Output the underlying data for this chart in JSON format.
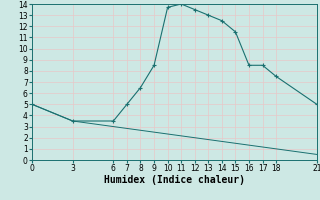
{
  "xlabel": "Humidex (Indice chaleur)",
  "bg_color": "#cde8e4",
  "grid_color": "#e8c8c8",
  "line_color": "#1a7070",
  "upper_x": [
    0,
    3,
    6,
    7,
    8,
    9,
    10,
    11,
    12,
    13,
    14,
    15,
    16,
    17,
    18,
    21
  ],
  "upper_y": [
    5.0,
    3.5,
    3.5,
    5.0,
    6.5,
    8.5,
    13.7,
    14.0,
    13.5,
    13.0,
    12.5,
    11.5,
    8.5,
    8.5,
    7.5,
    5.0
  ],
  "lower_x": [
    0,
    3,
    6,
    9,
    12,
    15,
    18,
    21
  ],
  "lower_y": [
    5.0,
    3.5,
    3.0,
    2.5,
    2.0,
    1.5,
    1.0,
    0.5
  ],
  "xlim": [
    0,
    21
  ],
  "ylim": [
    0,
    14
  ],
  "xticks": [
    0,
    3,
    6,
    7,
    8,
    9,
    10,
    11,
    12,
    13,
    14,
    15,
    16,
    17,
    18,
    21
  ],
  "yticks": [
    0,
    1,
    2,
    3,
    4,
    5,
    6,
    7,
    8,
    9,
    10,
    11,
    12,
    13,
    14
  ],
  "axis_fontsize": 6.5,
  "tick_fontsize": 5.5,
  "xlabel_fontsize": 7
}
